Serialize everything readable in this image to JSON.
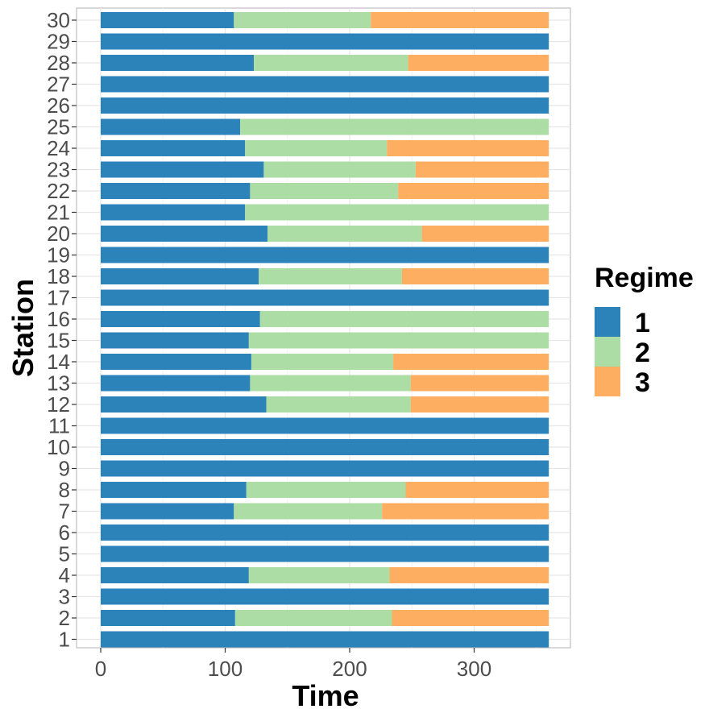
{
  "chart_data": {
    "type": "bar",
    "orientation": "horizontal",
    "stacked": true,
    "xlabel": "Time",
    "ylabel": "Station",
    "xlim": [
      -10,
      370
    ],
    "xticks": [
      "0",
      "100",
      "200",
      "300"
    ],
    "xtick_values": [
      0,
      100,
      200,
      300
    ],
    "grid": true,
    "legend": {
      "title": "Regime",
      "placement": "right",
      "entries": [
        "1",
        "2",
        "3"
      ]
    },
    "colors": {
      "1": "#2b83ba",
      "2": "#abdda4",
      "3": "#fdae61"
    },
    "categories": [
      "1",
      "2",
      "3",
      "4",
      "5",
      "6",
      "7",
      "8",
      "9",
      "10",
      "11",
      "12",
      "13",
      "14",
      "15",
      "16",
      "17",
      "18",
      "19",
      "20",
      "21",
      "22",
      "23",
      "24",
      "25",
      "26",
      "27",
      "28",
      "29",
      "30"
    ],
    "series": [
      {
        "name": "1",
        "values": [
          360,
          108,
          360,
          119,
          360,
          360,
          107,
          117,
          360,
          360,
          360,
          133,
          120,
          121,
          119,
          128,
          360,
          127,
          360,
          134,
          116,
          120,
          131,
          116,
          112,
          360,
          360,
          123,
          360,
          107
        ]
      },
      {
        "name": "2",
        "values": [
          0,
          126,
          0,
          113,
          0,
          0,
          119,
          128,
          0,
          0,
          0,
          116,
          129,
          114,
          241,
          232,
          0,
          115,
          0,
          124,
          244,
          119,
          122,
          114,
          248,
          0,
          0,
          124,
          0,
          110
        ]
      },
      {
        "name": "3",
        "values": [
          0,
          126,
          0,
          128,
          0,
          0,
          134,
          115,
          0,
          0,
          0,
          111,
          111,
          125,
          0,
          0,
          0,
          118,
          0,
          102,
          0,
          121,
          107,
          130,
          0,
          0,
          0,
          113,
          0,
          143
        ]
      }
    ]
  }
}
